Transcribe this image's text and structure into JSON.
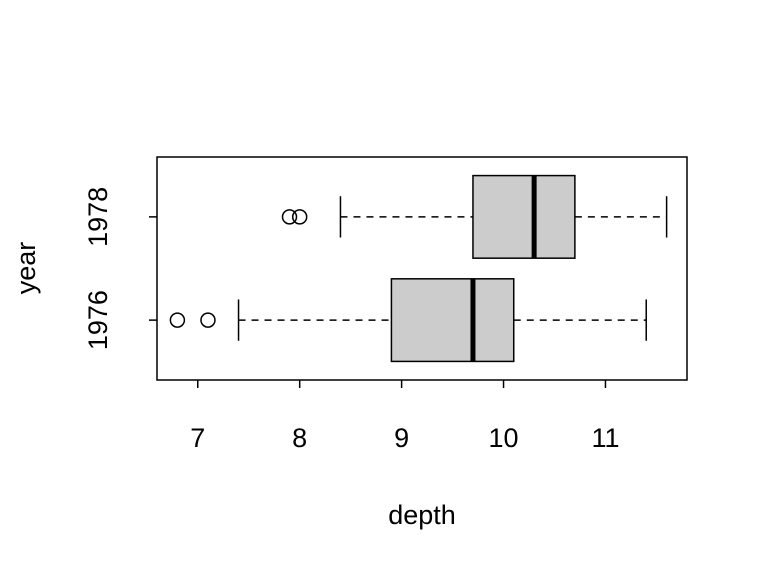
{
  "chart_data": {
    "type": "boxplot",
    "orientation": "horizontal",
    "x_label": "depth",
    "y_label": "year",
    "categories": [
      "1976",
      "1978"
    ],
    "boxes": [
      {
        "whisker_low": 7.4,
        "q1": 8.9,
        "median": 9.7,
        "q3": 10.1,
        "whisker_high": 11.4,
        "outliers": [
          6.8,
          7.1
        ]
      },
      {
        "whisker_low": 8.4,
        "q1": 9.7,
        "median": 10.3,
        "q3": 10.7,
        "whisker_high": 11.6,
        "outliers": [
          7.9,
          8.0
        ]
      }
    ],
    "color": "#cccccc",
    "xlim": [
      6.6,
      11.8
    ],
    "xticks": [
      7,
      8,
      9,
      10,
      11
    ]
  }
}
